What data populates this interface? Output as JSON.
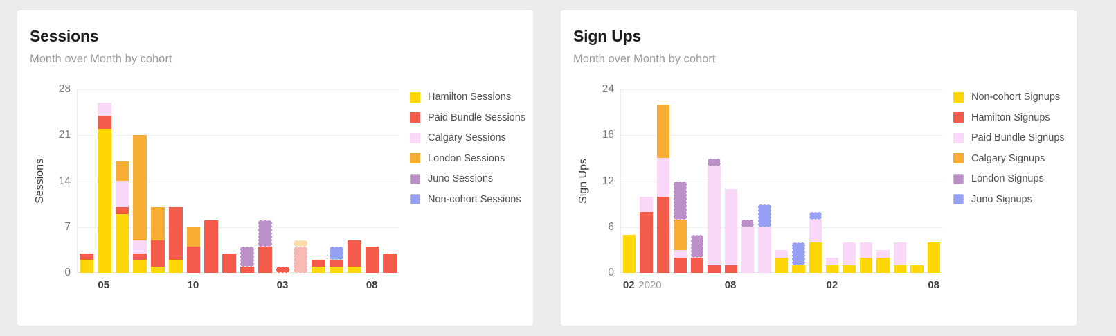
{
  "page": {
    "background": "#EBEBEB",
    "card_background": "#FFFFFF"
  },
  "chart_data": [
    {
      "type": "bar",
      "stacked": true,
      "title": "Sessions",
      "subtitle": "Month over Month by cohort",
      "ylabel": "Sessions",
      "ylim": [
        0,
        28
      ],
      "yticks": [
        0,
        7,
        14,
        21,
        28
      ],
      "grid": "horizontal",
      "legend_position": "right",
      "categories": [
        "2020-04",
        "2020-05",
        "2020-06",
        "2020-07",
        "2020-08",
        "2020-09",
        "2020-10",
        "2020-11",
        "2020-12",
        "2021-01",
        "2021-02",
        "2021-03",
        "2021-04",
        "2021-05",
        "2021-06",
        "2021-07",
        "2021-08",
        "2021-09"
      ],
      "x_tick_labels": [
        "",
        "05",
        "",
        "",
        "",
        "",
        "10",
        "",
        "",
        "",
        "",
        "03",
        "",
        "",
        "",
        "",
        "08",
        ""
      ],
      "x_year_suffix": null,
      "faded_bar_indices": [
        12
      ],
      "dashed_outline_bar_indices": [
        11
      ],
      "series": [
        {
          "name": "Hamilton Sessions",
          "color": "#FFD707",
          "dashed_border": false,
          "values": [
            2,
            22,
            9,
            2,
            1,
            2,
            0,
            0,
            0,
            0,
            0,
            0,
            0,
            1,
            1,
            1,
            0,
            0
          ]
        },
        {
          "name": "Paid Bundle Sessions",
          "color": "#F55B4B",
          "dashed_border": false,
          "values": [
            1,
            2,
            1,
            1,
            4,
            8,
            4,
            8,
            3,
            1,
            4,
            1,
            4,
            1,
            1,
            4,
            4,
            3
          ]
        },
        {
          "name": "Calgary Sessions",
          "color": "#FAD8F8",
          "dashed_border": false,
          "values": [
            0,
            2,
            4,
            2,
            0,
            0,
            0,
            0,
            0,
            0,
            0,
            0,
            0,
            0,
            0,
            0,
            0,
            0
          ]
        },
        {
          "name": "London Sessions",
          "color": "#F7AC33",
          "dashed_border": false,
          "values": [
            0,
            0,
            3,
            16,
            5,
            0,
            3,
            0,
            0,
            0,
            0,
            0,
            1,
            0,
            0,
            0,
            0,
            0
          ]
        },
        {
          "name": "Juno Sessions",
          "color": "#BC8FC9",
          "dashed_border": true,
          "values": [
            0,
            0,
            0,
            0,
            0,
            0,
            0,
            0,
            0,
            3,
            4,
            0,
            0,
            0,
            0,
            0,
            0,
            0
          ]
        },
        {
          "name": "Non-cohort Sessions",
          "color": "#98A0F5",
          "dashed_border": true,
          "values": [
            0,
            0,
            0,
            0,
            0,
            0,
            0,
            0,
            0,
            0,
            0,
            0,
            0,
            0,
            2,
            0,
            0,
            0
          ]
        }
      ]
    },
    {
      "type": "bar",
      "stacked": true,
      "title": "Sign Ups",
      "subtitle": "Month over Month by cohort",
      "ylabel": "Sign Ups",
      "ylim": [
        0,
        24
      ],
      "yticks": [
        0,
        6,
        12,
        18,
        24
      ],
      "grid": "horizontal",
      "legend_position": "right",
      "categories": [
        "2020-02",
        "2020-03",
        "2020-04",
        "2020-05",
        "2020-06",
        "2020-07",
        "2020-08",
        "2020-09",
        "2020-10",
        "2020-11",
        "2020-12",
        "2021-01",
        "2021-02",
        "2021-03",
        "2021-04",
        "2021-05",
        "2021-06",
        "2021-07",
        "2021-08"
      ],
      "x_tick_labels": [
        "02",
        "",
        "",
        "",
        "",
        "",
        "08",
        "",
        "",
        "",
        "",
        "",
        "02",
        "",
        "",
        "",
        "",
        "",
        "08"
      ],
      "x_year_suffix": {
        "index": 0,
        "text": "2020"
      },
      "faded_bar_indices": [],
      "dashed_outline_bar_indices": [],
      "series": [
        {
          "name": "Non-cohort Signups",
          "color": "#FFD707",
          "dashed_border": false,
          "values": [
            5,
            0,
            0,
            0,
            0,
            0,
            0,
            0,
            0,
            2,
            1,
            4,
            1,
            1,
            2,
            2,
            1,
            1,
            4
          ]
        },
        {
          "name": "Hamilton Signups",
          "color": "#F55B4B",
          "dashed_border": false,
          "values": [
            0,
            8,
            10,
            2,
            2,
            1,
            1,
            0,
            0,
            0,
            0,
            0,
            0,
            0,
            0,
            0,
            0,
            0,
            0
          ]
        },
        {
          "name": "Paid Bundle Signups",
          "color": "#FAD8F8",
          "dashed_border": false,
          "values": [
            0,
            2,
            5,
            1,
            0,
            13,
            10,
            6,
            6,
            1,
            0,
            3,
            1,
            3,
            2,
            1,
            3,
            0,
            0
          ]
        },
        {
          "name": "Calgary Signups",
          "color": "#F7AC33",
          "dashed_border": false,
          "values": [
            0,
            0,
            7,
            4,
            0,
            0,
            0,
            0,
            0,
            0,
            0,
            0,
            0,
            0,
            0,
            0,
            0,
            0,
            0
          ]
        },
        {
          "name": "London Signups",
          "color": "#BC8FC9",
          "dashed_border": true,
          "values": [
            0,
            0,
            0,
            5,
            3,
            1,
            0,
            1,
            0,
            0,
            0,
            0,
            0,
            0,
            0,
            0,
            0,
            0,
            0
          ]
        },
        {
          "name": "Juno Signups",
          "color": "#98A0F5",
          "dashed_border": true,
          "values": [
            0,
            0,
            0,
            0,
            0,
            0,
            0,
            0,
            3,
            0,
            3,
            1,
            0,
            0,
            0,
            0,
            0,
            0,
            0
          ]
        }
      ]
    }
  ]
}
